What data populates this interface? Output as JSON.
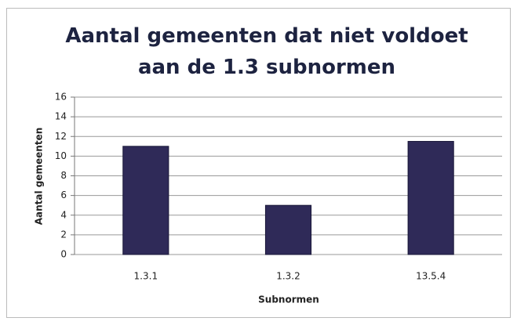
{
  "chart_data": {
    "type": "bar",
    "title": "Aantal gemeenten dat niet voldoet aan de 1.3 subnormen",
    "categories": [
      "1.3.1",
      "1.3.2",
      "13.5.4"
    ],
    "values": [
      11,
      5,
      11.5
    ],
    "color": "#2f2a58",
    "xlabel": "Subnormen",
    "ylabel": "Aantal gemeenten",
    "ylim": [
      0,
      16
    ],
    "yticks": [
      0,
      2,
      4,
      6,
      8,
      10,
      12,
      14,
      16
    ],
    "grid": true
  }
}
